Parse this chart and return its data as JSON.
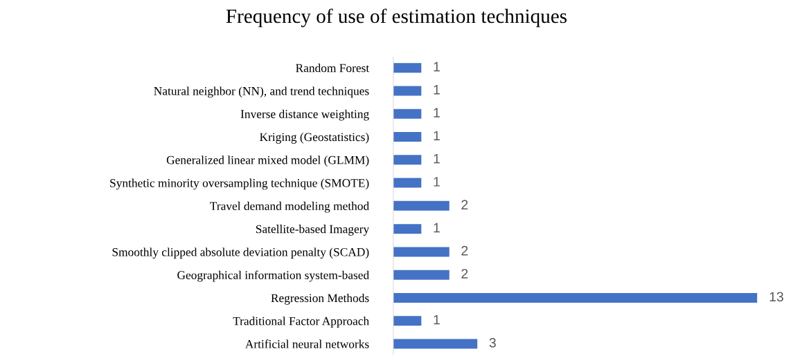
{
  "chart_data": {
    "type": "bar",
    "orientation": "horizontal",
    "title": "Frequency of use of estimation techniques",
    "categories": [
      "Random Forest",
      "Natural neighbor (NN), and trend techniques",
      "Inverse distance weighting",
      "Kriging (Geostatistics)",
      "Generalized linear mixed model (GLMM)",
      "Synthetic minority oversampling technique (SMOTE)",
      "Travel demand modeling method",
      "Satellite-based Imagery",
      "Smoothly clipped absolute deviation penalty (SCAD)",
      "Geographical information system-based",
      "Regression Methods",
      "Traditional Factor Approach",
      "Artificial neural networks"
    ],
    "values": [
      1,
      1,
      1,
      1,
      1,
      1,
      2,
      1,
      2,
      2,
      13,
      1,
      3
    ],
    "color": "#4472c4",
    "data_labels": true,
    "grid": false,
    "tick_labels": "y"
  }
}
